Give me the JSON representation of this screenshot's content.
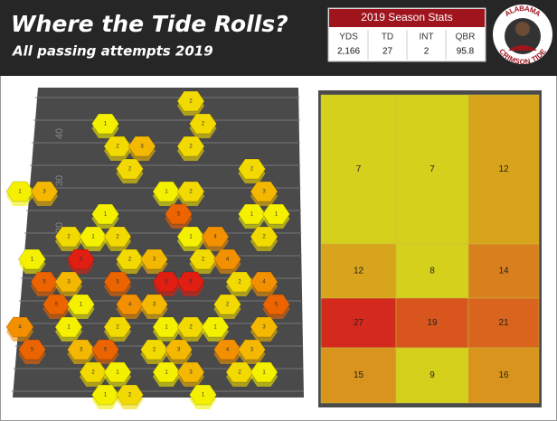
{
  "header": {
    "title": "Where the Tide Rolls?",
    "subtitle": "All passing attempts 2019"
  },
  "stats": {
    "title": "2019 Season Stats",
    "columns": [
      {
        "label": "YDS",
        "value": "2,166"
      },
      {
        "label": "TD",
        "value": "27"
      },
      {
        "label": "INT",
        "value": "2"
      },
      {
        "label": "QBR",
        "value": "95.8"
      }
    ]
  },
  "logo": {
    "top": "ALABAMA",
    "bottom": "CRIMSON TIDE"
  },
  "hex_chart": {
    "type": "hexbin",
    "yard_labels": [
      "40",
      "30",
      "20"
    ],
    "color_scale": [
      "#f4f000",
      "#f2da00",
      "#f4b800",
      "#f29000",
      "#ec6400",
      "#e01e12"
    ],
    "hexes": [
      {
        "col": 7,
        "row": 0,
        "value": 2
      },
      {
        "col": 3,
        "row": 1,
        "value": 1
      },
      {
        "col": 7,
        "row": 1,
        "value": 2
      },
      {
        "col": 4,
        "row": 2,
        "value": 2
      },
      {
        "col": 5,
        "row": 2,
        "value": 3
      },
      {
        "col": 7,
        "row": 2,
        "value": 2
      },
      {
        "col": 4,
        "row": 3,
        "value": 2
      },
      {
        "col": 9,
        "row": 3,
        "value": 2
      },
      {
        "col": 0,
        "row": 4,
        "value": 1
      },
      {
        "col": 1,
        "row": 4,
        "value": 3
      },
      {
        "col": 6,
        "row": 4,
        "value": 1
      },
      {
        "col": 7,
        "row": 4,
        "value": 2
      },
      {
        "col": 10,
        "row": 4,
        "value": 3
      },
      {
        "col": 3,
        "row": 5,
        "value": 1
      },
      {
        "col": 6,
        "row": 5,
        "value": 5
      },
      {
        "col": 9,
        "row": 5,
        "value": 1
      },
      {
        "col": 10,
        "row": 5,
        "value": 1
      },
      {
        "col": 2,
        "row": 6,
        "value": 2
      },
      {
        "col": 3,
        "row": 6,
        "value": 1
      },
      {
        "col": 4,
        "row": 6,
        "value": 2
      },
      {
        "col": 7,
        "row": 6,
        "value": 1
      },
      {
        "col": 8,
        "row": 6,
        "value": 4
      },
      {
        "col": 10,
        "row": 6,
        "value": 2
      },
      {
        "col": 0,
        "row": 7,
        "value": 1
      },
      {
        "col": 2,
        "row": 7,
        "value": 6
      },
      {
        "col": 4,
        "row": 7,
        "value": 2
      },
      {
        "col": 5,
        "row": 7,
        "value": 3
      },
      {
        "col": 7,
        "row": 7,
        "value": 2
      },
      {
        "col": 8,
        "row": 7,
        "value": 4
      },
      {
        "col": 1,
        "row": 8,
        "value": 5
      },
      {
        "col": 2,
        "row": 8,
        "value": 3
      },
      {
        "col": 4,
        "row": 8,
        "value": 5
      },
      {
        "col": 6,
        "row": 8,
        "value": 6
      },
      {
        "col": 7,
        "row": 8,
        "value": 6
      },
      {
        "col": 9,
        "row": 8,
        "value": 2
      },
      {
        "col": 10,
        "row": 8,
        "value": 4
      },
      {
        "col": 1,
        "row": 9,
        "value": 5
      },
      {
        "col": 2,
        "row": 9,
        "value": 1
      },
      {
        "col": 4,
        "row": 9,
        "value": 4
      },
      {
        "col": 5,
        "row": 9,
        "value": 3
      },
      {
        "col": 8,
        "row": 9,
        "value": 2
      },
      {
        "col": 10,
        "row": 9,
        "value": 5
      },
      {
        "col": 0,
        "row": 10,
        "value": 4
      },
      {
        "col": 2,
        "row": 10,
        "value": 1
      },
      {
        "col": 4,
        "row": 10,
        "value": 2
      },
      {
        "col": 6,
        "row": 10,
        "value": 1
      },
      {
        "col": 7,
        "row": 10,
        "value": 2
      },
      {
        "col": 8,
        "row": 10,
        "value": 1
      },
      {
        "col": 10,
        "row": 10,
        "value": 3
      },
      {
        "col": 0,
        "row": 11,
        "value": 5
      },
      {
        "col": 2,
        "row": 11,
        "value": 3
      },
      {
        "col": 3,
        "row": 11,
        "value": 5
      },
      {
        "col": 5,
        "row": 11,
        "value": 2
      },
      {
        "col": 6,
        "row": 11,
        "value": 3
      },
      {
        "col": 8,
        "row": 11,
        "value": 4
      },
      {
        "col": 9,
        "row": 11,
        "value": 3
      },
      {
        "col": 3,
        "row": 12,
        "value": 2
      },
      {
        "col": 4,
        "row": 12,
        "value": 1
      },
      {
        "col": 6,
        "row": 12,
        "value": 1
      },
      {
        "col": 7,
        "row": 12,
        "value": 3
      },
      {
        "col": 9,
        "row": 12,
        "value": 2
      },
      {
        "col": 10,
        "row": 12,
        "value": 1
      },
      {
        "col": 3,
        "row": 13,
        "value": 1
      },
      {
        "col": 4,
        "row": 13,
        "value": 2
      },
      {
        "col": 7,
        "row": 13,
        "value": 1
      }
    ]
  },
  "heat_chart": {
    "type": "heatmap",
    "values": [
      [
        7,
        7,
        12
      ],
      [
        12,
        8,
        14
      ],
      [
        27,
        19,
        21
      ],
      [
        15,
        9,
        16
      ]
    ],
    "colors": [
      [
        "#d4d01c",
        "#d4d01c",
        "#d8a41c"
      ],
      [
        "#d8a41c",
        "#d4d01c",
        "#d8801e"
      ],
      [
        "#d42a1e",
        "#d8561e",
        "#d8641e"
      ],
      [
        "#d8941c",
        "#d4d01c",
        "#d8941c"
      ]
    ]
  }
}
